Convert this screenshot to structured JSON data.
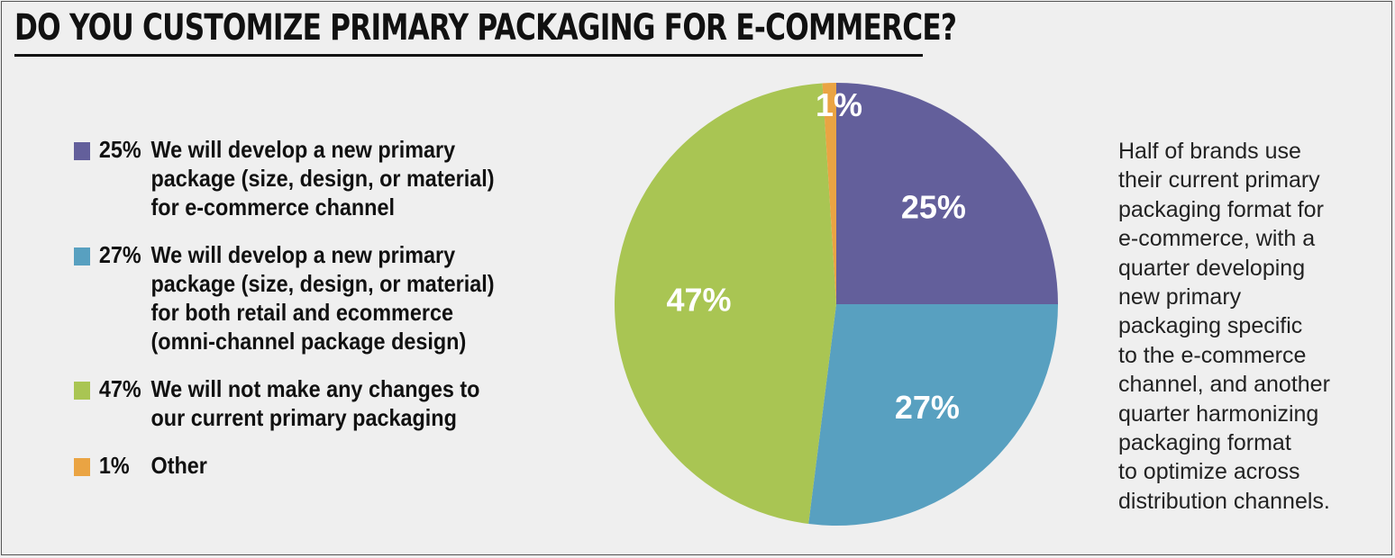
{
  "title": "DO YOU CUSTOMIZE PRIMARY PACKAGING FOR E-COMMERCE?",
  "note_lines": [
    "Half of brands use",
    "their current primary",
    "packaging format for",
    "e-commerce, with a",
    "quarter developing",
    "new primary",
    "packaging specific",
    "to the e-commerce",
    "channel, and another",
    "quarter harmonizing",
    "packaging format",
    "to optimize across",
    "distribution channels."
  ],
  "chart_data": {
    "type": "pie",
    "title": "DO YOU CUSTOMIZE PRIMARY PACKAGING FOR E-COMMERCE?",
    "legend_position": "left",
    "slices": [
      {
        "value": 25,
        "pct_label": "25%",
        "label_lines": [
          "We will develop a new primary",
          "package (size, design, or material)",
          "for e-commerce channel"
        ],
        "color": "#635f9b"
      },
      {
        "value": 27,
        "pct_label": "27%",
        "label_lines": [
          "We will develop a new primary",
          "package (size, design, or material)",
          "for both retail and ecommerce",
          "(omni-channel package design)"
        ],
        "color": "#58a0c0"
      },
      {
        "value": 47,
        "pct_label": "47%",
        "label_lines": [
          "We will not make any changes to",
          "our current primary packaging"
        ],
        "color": "#a9c553"
      },
      {
        "value": 1,
        "pct_label": "1%",
        "label_lines": [
          "Other"
        ],
        "color": "#eaa443"
      }
    ]
  }
}
